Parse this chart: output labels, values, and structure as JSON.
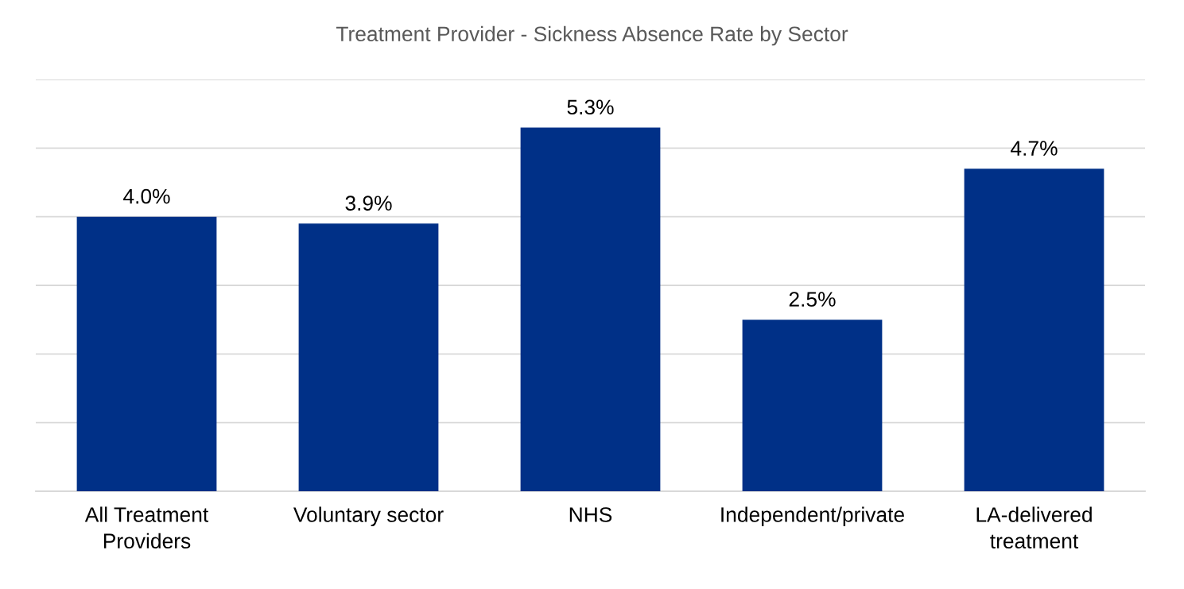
{
  "chart_data": {
    "type": "bar",
    "title": "Treatment Provider - Sickness Absence Rate by Sector",
    "categories": [
      "All Treatment\nProviders",
      "Voluntary sector",
      "NHS",
      "Independent/private",
      "LA-delivered\ntreatment"
    ],
    "values": [
      4.0,
      3.9,
      5.3,
      2.5,
      4.7
    ],
    "value_labels": [
      "4.0%",
      "3.9%",
      "5.3%",
      "2.5%",
      "4.7%"
    ],
    "color": "#003087",
    "ylim": [
      0,
      6
    ],
    "yticks": [
      {
        "value": 0,
        "label": null
      },
      {
        "value": 1,
        "label": null
      },
      {
        "value": 2,
        "label": null
      },
      {
        "value": 3,
        "label": null
      },
      {
        "value": 4,
        "label": null
      },
      {
        "value": 5,
        "label": null
      },
      {
        "value": 6,
        "label": null
      }
    ],
    "tick_labels": "x",
    "grid": "y"
  }
}
